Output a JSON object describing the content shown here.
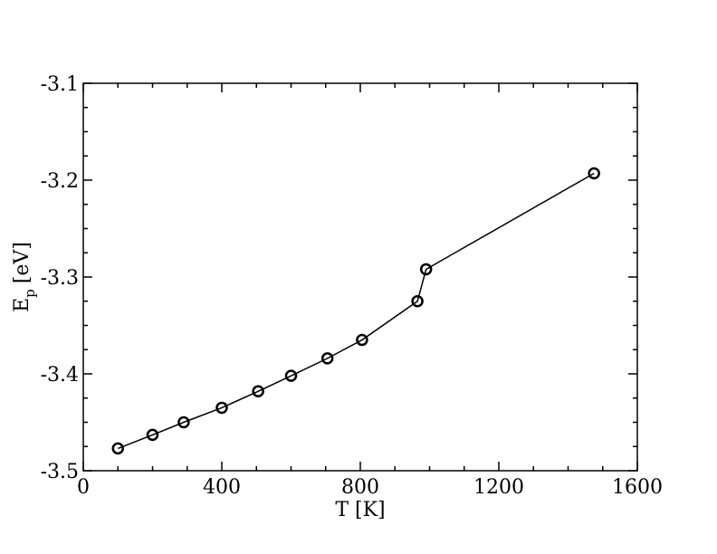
{
  "chart_data": {
    "type": "line",
    "title": "",
    "xlabel": "T [K]",
    "ylabel_main": "E",
    "ylabel_sub": "p",
    "ylabel_unit": "[eV]",
    "xlim": [
      0,
      1600
    ],
    "ylim": [
      -3.5,
      -3.1
    ],
    "xticks": [
      0,
      400,
      800,
      1200,
      1600
    ],
    "xtick_labels": [
      "0",
      "400",
      "800",
      "1200",
      "1600"
    ],
    "xminor_step": 100,
    "yticks": [
      -3.5,
      -3.4,
      -3.3,
      -3.2,
      -3.1
    ],
    "ytick_labels": [
      "-3.5",
      "-3.4",
      "-3.3",
      "-3.2",
      "-3.1"
    ],
    "yminor_step": 0.025,
    "grid": false,
    "series": [
      {
        "marker": "open-circle",
        "color": "#000000",
        "x": [
          100,
          200,
          290,
          400,
          505,
          600,
          705,
          805,
          965,
          990,
          1475
        ],
        "y": [
          -3.477,
          -3.463,
          -3.45,
          -3.435,
          -3.418,
          -3.402,
          -3.384,
          -3.365,
          -3.325,
          -3.292,
          -3.193
        ]
      }
    ]
  }
}
